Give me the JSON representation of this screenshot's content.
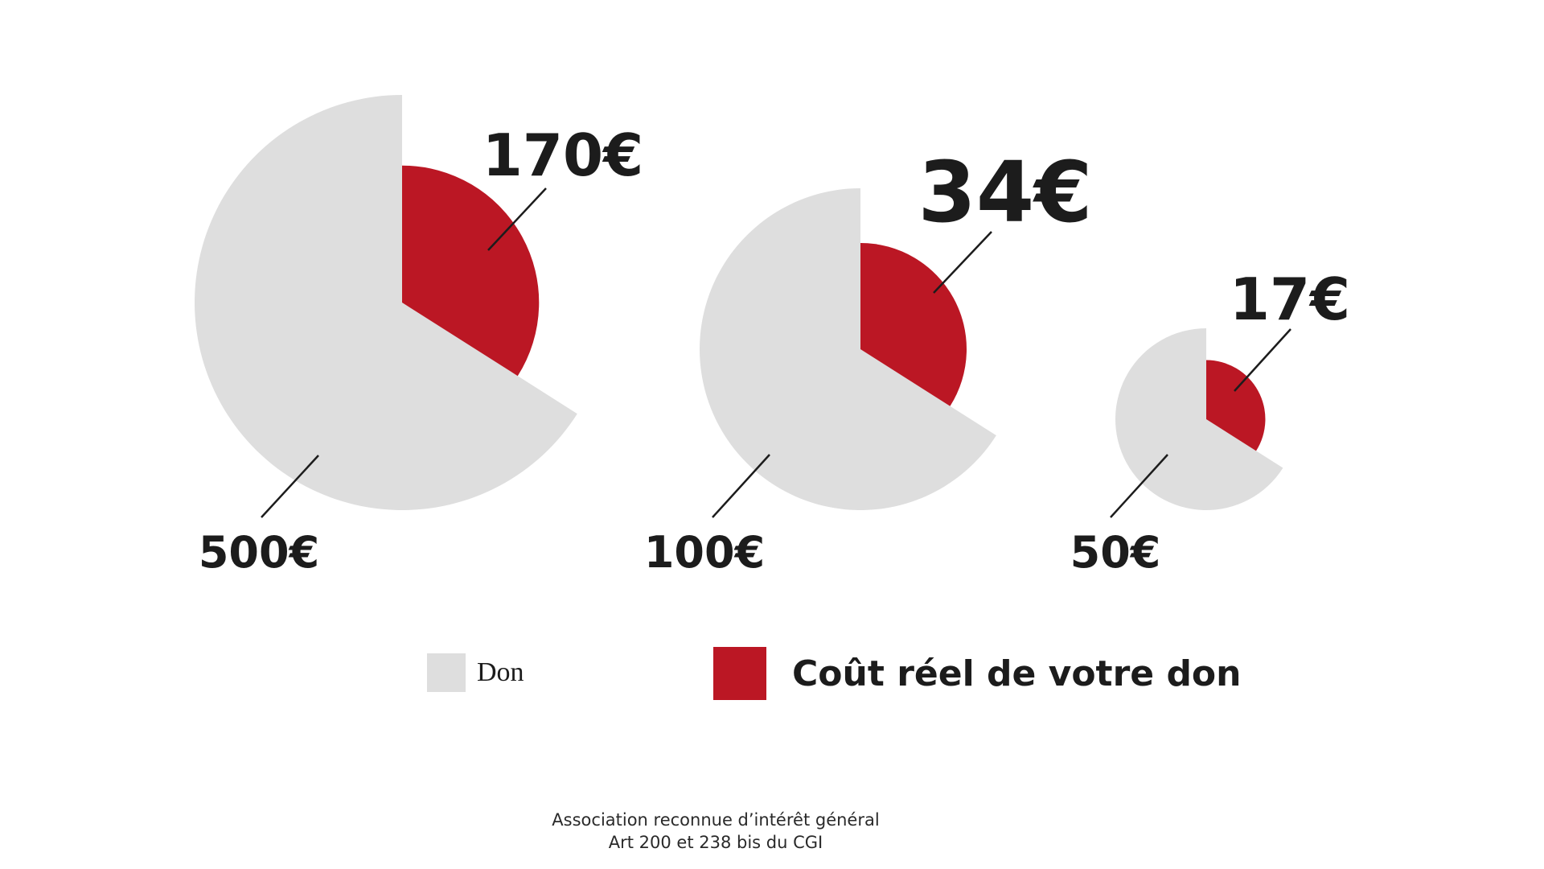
{
  "chart_data": {
    "type": "pie",
    "colors": {
      "don": "#dedede",
      "cout": "#bb1724"
    },
    "legend": [
      {
        "key": "don",
        "label": "Don"
      },
      {
        "key": "cout",
        "label": "Coût réel de votre don"
      }
    ],
    "pies": [
      {
        "donation": 500,
        "donation_label": "500€",
        "real_cost": 170,
        "real_cost_label": "170€"
      },
      {
        "donation": 100,
        "donation_label": "100€",
        "real_cost": 34,
        "real_cost_label": "34€"
      },
      {
        "donation": 50,
        "donation_label": "50€",
        "real_cost": 17,
        "real_cost_label": "17€"
      }
    ]
  },
  "footer": {
    "line1": "Association reconnue d’intérêt général",
    "line2": "Art 200 et 238 bis du CGI"
  }
}
